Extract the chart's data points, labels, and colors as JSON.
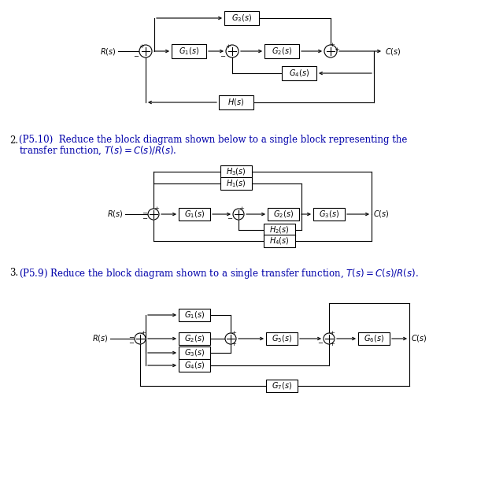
{
  "bg_color": "#ffffff",
  "line_color": "#000000",
  "fig_width": 6.39,
  "fig_height": 6.4,
  "dpi": 100
}
